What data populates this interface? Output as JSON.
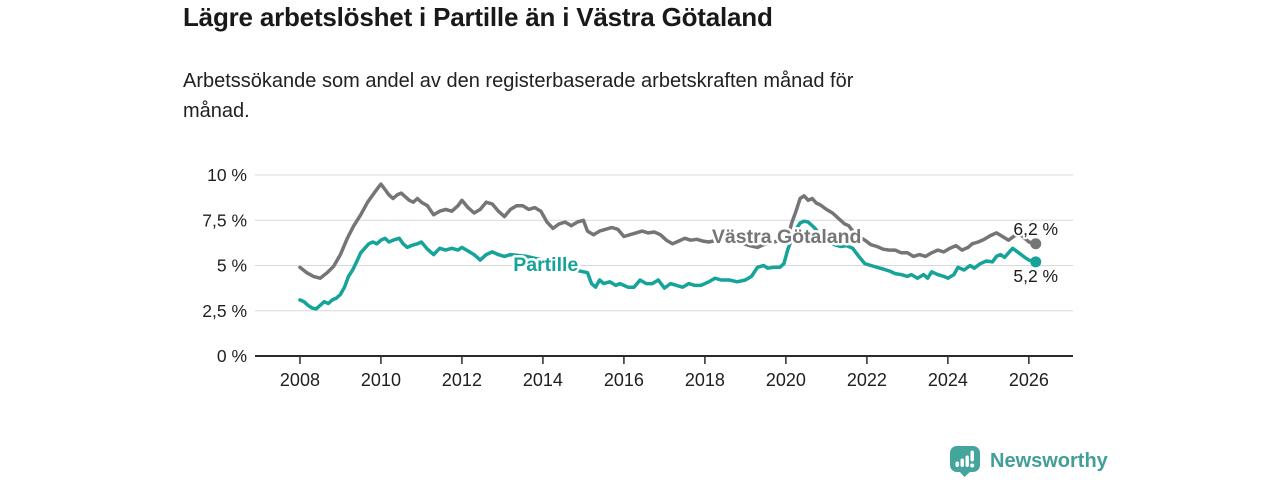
{
  "header": {
    "title": "Lägre arbetslöshet i Partille än i Västra Götaland",
    "subtitle_line1": "Arbetssökande som andel av den registerbaserade arbetskraften månad för",
    "subtitle_line2": "månad."
  },
  "footer": {
    "brand": "Newsworthy",
    "logo_icon": "bar-chart-speech-bubble-icon",
    "logo_color": "#419f97"
  },
  "chart_data": {
    "type": "line",
    "title": "Lägre arbetslöshet i Partille än i Västra Götaland",
    "xlabel": "",
    "ylabel": "",
    "x_range": [
      2006.89,
      2027.09
    ],
    "y_range": [
      0,
      10
    ],
    "grid": true,
    "x_axis": {
      "ticks": [
        2008,
        2010,
        2012,
        2014,
        2016,
        2018,
        2020,
        2022,
        2024,
        2026
      ]
    },
    "y_axis": {
      "ticks": [
        {
          "value": 0,
          "label": "0 %"
        },
        {
          "value": 2.5,
          "label": "2,5 %"
        },
        {
          "value": 5,
          "label": "5 %"
        },
        {
          "value": 7.5,
          "label": "7,5 %"
        },
        {
          "value": 10,
          "label": "10 %"
        }
      ]
    },
    "style": {
      "grid_color": "#d9d9d9",
      "axis_color": "#2a2a2a",
      "text_color": "#1f1f1f"
    },
    "series": [
      {
        "id": "vastra-gotaland",
        "name": "Västra Götaland",
        "color": "#757577",
        "end_value": 6.2,
        "end_label": "6,2 %",
        "end_label_position": "above",
        "label_at": [
          2020.02,
          6.63
        ],
        "points": [
          [
            2008.0,
            4.9
          ],
          [
            2008.17,
            4.6
          ],
          [
            2008.33,
            4.4
          ],
          [
            2008.5,
            4.3
          ],
          [
            2008.67,
            4.6
          ],
          [
            2008.83,
            4.95
          ],
          [
            2009.0,
            5.6
          ],
          [
            2009.17,
            6.5
          ],
          [
            2009.33,
            7.2
          ],
          [
            2009.5,
            7.8
          ],
          [
            2009.67,
            8.5
          ],
          [
            2009.83,
            9.0
          ],
          [
            2010.0,
            9.5
          ],
          [
            2010.1,
            9.2
          ],
          [
            2010.2,
            8.9
          ],
          [
            2010.3,
            8.7
          ],
          [
            2010.4,
            8.9
          ],
          [
            2010.5,
            9.0
          ],
          [
            2010.6,
            8.8
          ],
          [
            2010.7,
            8.6
          ],
          [
            2010.8,
            8.5
          ],
          [
            2010.9,
            8.7
          ],
          [
            2011.0,
            8.5
          ],
          [
            2011.15,
            8.3
          ],
          [
            2011.3,
            7.8
          ],
          [
            2011.45,
            8.0
          ],
          [
            2011.6,
            8.1
          ],
          [
            2011.75,
            8.0
          ],
          [
            2011.9,
            8.3
          ],
          [
            2012.0,
            8.6
          ],
          [
            2012.15,
            8.2
          ],
          [
            2012.3,
            7.9
          ],
          [
            2012.45,
            8.1
          ],
          [
            2012.6,
            8.5
          ],
          [
            2012.75,
            8.4
          ],
          [
            2012.9,
            8.0
          ],
          [
            2013.05,
            7.7
          ],
          [
            2013.2,
            8.1
          ],
          [
            2013.35,
            8.3
          ],
          [
            2013.5,
            8.3
          ],
          [
            2013.65,
            8.1
          ],
          [
            2013.8,
            8.2
          ],
          [
            2013.95,
            8.0
          ],
          [
            2014.1,
            7.4
          ],
          [
            2014.25,
            7.05
          ],
          [
            2014.4,
            7.3
          ],
          [
            2014.55,
            7.4
          ],
          [
            2014.7,
            7.2
          ],
          [
            2014.85,
            7.4
          ],
          [
            2015.0,
            7.5
          ],
          [
            2015.1,
            6.9
          ],
          [
            2015.25,
            6.7
          ],
          [
            2015.4,
            6.9
          ],
          [
            2015.55,
            7.0
          ],
          [
            2015.7,
            7.1
          ],
          [
            2015.85,
            7.0
          ],
          [
            2016.0,
            6.6
          ],
          [
            2016.15,
            6.7
          ],
          [
            2016.3,
            6.8
          ],
          [
            2016.45,
            6.9
          ],
          [
            2016.6,
            6.8
          ],
          [
            2016.75,
            6.85
          ],
          [
            2016.9,
            6.7
          ],
          [
            2017.05,
            6.4
          ],
          [
            2017.2,
            6.2
          ],
          [
            2017.35,
            6.35
          ],
          [
            2017.5,
            6.5
          ],
          [
            2017.65,
            6.4
          ],
          [
            2017.8,
            6.45
          ],
          [
            2017.95,
            6.35
          ],
          [
            2018.1,
            6.3
          ],
          [
            2018.3,
            6.4
          ],
          [
            2018.5,
            6.45
          ],
          [
            2018.7,
            6.35
          ],
          [
            2018.9,
            6.25
          ],
          [
            2019.1,
            6.1
          ],
          [
            2019.3,
            6.0
          ],
          [
            2019.5,
            6.2
          ],
          [
            2019.7,
            6.3
          ],
          [
            2019.9,
            6.4
          ],
          [
            2020.05,
            6.6
          ],
          [
            2020.15,
            7.4
          ],
          [
            2020.25,
            8.0
          ],
          [
            2020.35,
            8.7
          ],
          [
            2020.45,
            8.85
          ],
          [
            2020.55,
            8.6
          ],
          [
            2020.65,
            8.7
          ],
          [
            2020.75,
            8.45
          ],
          [
            2020.85,
            8.35
          ],
          [
            2021.0,
            8.1
          ],
          [
            2021.15,
            7.9
          ],
          [
            2021.3,
            7.6
          ],
          [
            2021.45,
            7.3
          ],
          [
            2021.55,
            7.2
          ],
          [
            2021.65,
            6.9
          ],
          [
            2021.8,
            6.6
          ],
          [
            2021.95,
            6.4
          ],
          [
            2022.1,
            6.15
          ],
          [
            2022.25,
            6.05
          ],
          [
            2022.4,
            5.9
          ],
          [
            2022.55,
            5.85
          ],
          [
            2022.7,
            5.85
          ],
          [
            2022.85,
            5.7
          ],
          [
            2023.0,
            5.7
          ],
          [
            2023.15,
            5.5
          ],
          [
            2023.3,
            5.6
          ],
          [
            2023.45,
            5.5
          ],
          [
            2023.6,
            5.7
          ],
          [
            2023.75,
            5.85
          ],
          [
            2023.9,
            5.75
          ],
          [
            2024.05,
            5.95
          ],
          [
            2024.2,
            6.1
          ],
          [
            2024.35,
            5.85
          ],
          [
            2024.5,
            6.0
          ],
          [
            2024.6,
            6.2
          ],
          [
            2024.75,
            6.3
          ],
          [
            2024.9,
            6.45
          ],
          [
            2025.05,
            6.65
          ],
          [
            2025.2,
            6.8
          ],
          [
            2025.35,
            6.6
          ],
          [
            2025.5,
            6.4
          ],
          [
            2025.65,
            6.65
          ],
          [
            2025.8,
            6.7
          ],
          [
            2025.9,
            6.5
          ],
          [
            2026.0,
            6.3
          ],
          [
            2026.17,
            6.2
          ]
        ]
      },
      {
        "id": "partille",
        "name": "Partille",
        "color": "#16a399",
        "end_value": 5.2,
        "end_label": "5,2 %",
        "end_label_position": "below",
        "label_at": [
          2014.07,
          5.08
        ],
        "points": [
          [
            2008.0,
            3.1
          ],
          [
            2008.1,
            3.0
          ],
          [
            2008.2,
            2.8
          ],
          [
            2008.3,
            2.65
          ],
          [
            2008.4,
            2.6
          ],
          [
            2008.5,
            2.8
          ],
          [
            2008.6,
            3.0
          ],
          [
            2008.7,
            2.9
          ],
          [
            2008.8,
            3.1
          ],
          [
            2008.9,
            3.2
          ],
          [
            2009.0,
            3.4
          ],
          [
            2009.1,
            3.8
          ],
          [
            2009.2,
            4.4
          ],
          [
            2009.3,
            4.75
          ],
          [
            2009.4,
            5.2
          ],
          [
            2009.5,
            5.7
          ],
          [
            2009.6,
            5.95
          ],
          [
            2009.7,
            6.2
          ],
          [
            2009.8,
            6.3
          ],
          [
            2009.9,
            6.2
          ],
          [
            2010.0,
            6.4
          ],
          [
            2010.1,
            6.5
          ],
          [
            2010.2,
            6.3
          ],
          [
            2010.3,
            6.4
          ],
          [
            2010.45,
            6.5
          ],
          [
            2010.55,
            6.2
          ],
          [
            2010.65,
            6.0
          ],
          [
            2010.75,
            6.1
          ],
          [
            2010.9,
            6.2
          ],
          [
            2011.0,
            6.3
          ],
          [
            2011.15,
            5.9
          ],
          [
            2011.3,
            5.6
          ],
          [
            2011.45,
            5.95
          ],
          [
            2011.6,
            5.85
          ],
          [
            2011.75,
            5.95
          ],
          [
            2011.9,
            5.85
          ],
          [
            2012.0,
            6.0
          ],
          [
            2012.15,
            5.8
          ],
          [
            2012.3,
            5.6
          ],
          [
            2012.45,
            5.3
          ],
          [
            2012.6,
            5.6
          ],
          [
            2012.75,
            5.75
          ],
          [
            2012.9,
            5.6
          ],
          [
            2013.05,
            5.5
          ],
          [
            2013.2,
            5.6
          ],
          [
            2013.4,
            5.55
          ],
          [
            2013.6,
            5.5
          ],
          [
            2013.8,
            5.4
          ],
          [
            2014.0,
            5.3
          ],
          [
            2014.2,
            5.1
          ],
          [
            2014.4,
            5.0
          ],
          [
            2014.6,
            4.85
          ],
          [
            2014.8,
            4.75
          ],
          [
            2015.0,
            4.65
          ],
          [
            2015.1,
            4.6
          ],
          [
            2015.2,
            4.0
          ],
          [
            2015.3,
            3.8
          ],
          [
            2015.4,
            4.2
          ],
          [
            2015.5,
            4.0
          ],
          [
            2015.65,
            4.1
          ],
          [
            2015.8,
            3.9
          ],
          [
            2015.9,
            4.0
          ],
          [
            2016.0,
            3.9
          ],
          [
            2016.1,
            3.8
          ],
          [
            2016.25,
            3.8
          ],
          [
            2016.4,
            4.2
          ],
          [
            2016.55,
            4.0
          ],
          [
            2016.7,
            4.0
          ],
          [
            2016.85,
            4.2
          ],
          [
            2017.0,
            3.75
          ],
          [
            2017.15,
            4.0
          ],
          [
            2017.3,
            3.9
          ],
          [
            2017.45,
            3.8
          ],
          [
            2017.6,
            4.0
          ],
          [
            2017.75,
            3.9
          ],
          [
            2017.9,
            3.9
          ],
          [
            2018.1,
            4.1
          ],
          [
            2018.25,
            4.3
          ],
          [
            2018.4,
            4.2
          ],
          [
            2018.6,
            4.2
          ],
          [
            2018.8,
            4.1
          ],
          [
            2019.0,
            4.2
          ],
          [
            2019.15,
            4.4
          ],
          [
            2019.3,
            4.9
          ],
          [
            2019.45,
            5.0
          ],
          [
            2019.55,
            4.85
          ],
          [
            2019.7,
            4.9
          ],
          [
            2019.85,
            4.9
          ],
          [
            2019.95,
            5.1
          ],
          [
            2020.05,
            5.9
          ],
          [
            2020.15,
            6.5
          ],
          [
            2020.25,
            7.0
          ],
          [
            2020.35,
            7.35
          ],
          [
            2020.45,
            7.45
          ],
          [
            2020.55,
            7.4
          ],
          [
            2020.7,
            7.1
          ],
          [
            2020.85,
            6.7
          ],
          [
            2021.0,
            6.4
          ],
          [
            2021.2,
            6.15
          ],
          [
            2021.35,
            6.05
          ],
          [
            2021.5,
            6.1
          ],
          [
            2021.65,
            5.95
          ],
          [
            2021.8,
            5.5
          ],
          [
            2021.95,
            5.1
          ],
          [
            2022.1,
            5.0
          ],
          [
            2022.25,
            4.9
          ],
          [
            2022.4,
            4.8
          ],
          [
            2022.55,
            4.7
          ],
          [
            2022.7,
            4.55
          ],
          [
            2022.85,
            4.5
          ],
          [
            2023.0,
            4.4
          ],
          [
            2023.1,
            4.5
          ],
          [
            2023.25,
            4.3
          ],
          [
            2023.4,
            4.5
          ],
          [
            2023.5,
            4.3
          ],
          [
            2023.6,
            4.65
          ],
          [
            2023.75,
            4.5
          ],
          [
            2023.9,
            4.4
          ],
          [
            2024.0,
            4.3
          ],
          [
            2024.15,
            4.5
          ],
          [
            2024.25,
            4.9
          ],
          [
            2024.4,
            4.75
          ],
          [
            2024.55,
            5.0
          ],
          [
            2024.65,
            4.85
          ],
          [
            2024.8,
            5.1
          ],
          [
            2024.95,
            5.25
          ],
          [
            2025.1,
            5.2
          ],
          [
            2025.2,
            5.5
          ],
          [
            2025.3,
            5.6
          ],
          [
            2025.4,
            5.45
          ],
          [
            2025.5,
            5.7
          ],
          [
            2025.6,
            5.95
          ],
          [
            2025.75,
            5.7
          ],
          [
            2025.9,
            5.45
          ],
          [
            2026.0,
            5.3
          ],
          [
            2026.17,
            5.2
          ]
        ]
      }
    ]
  }
}
